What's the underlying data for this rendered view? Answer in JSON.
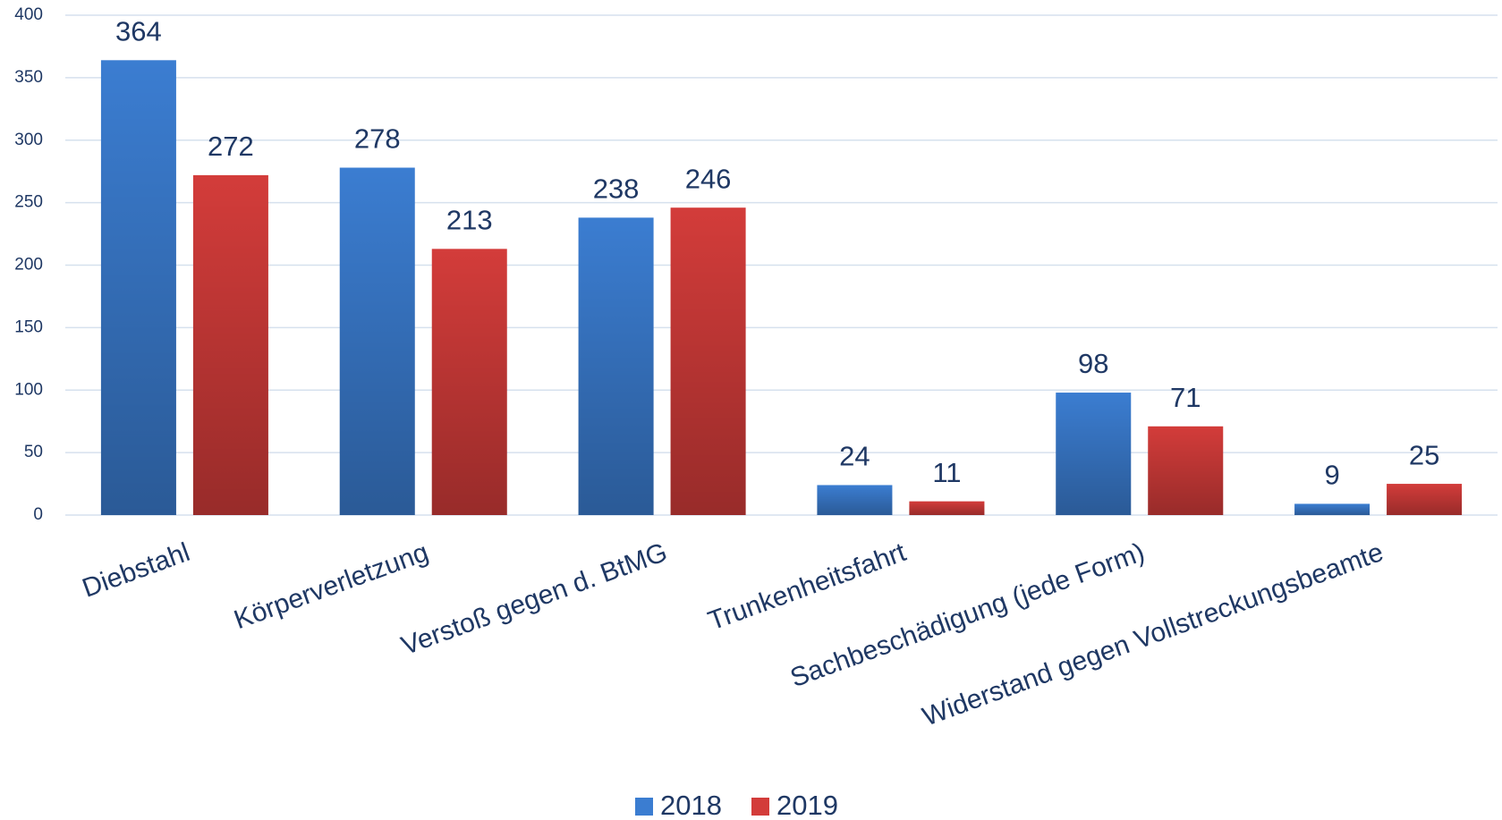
{
  "chart_data": {
    "type": "bar",
    "categories": [
      "Diebstahl",
      "Körperverletzung",
      "Verstoß gegen d. BtMG",
      "Trunkenheitsfahrt",
      "Sachbeschädigung (jede Form)",
      "Widerstand gegen Vollstreckungsbeamte"
    ],
    "series": [
      {
        "name": "2018",
        "color": "#3b7dd1",
        "values": [
          364,
          278,
          238,
          24,
          98,
          9
        ]
      },
      {
        "name": "2019",
        "color": "#d33c3a",
        "values": [
          272,
          213,
          246,
          11,
          71,
          25
        ]
      }
    ],
    "ylim": [
      0,
      400
    ],
    "yticks": [
      0,
      50,
      100,
      150,
      200,
      250,
      300,
      350,
      400
    ],
    "grid": true,
    "legend": "bottom"
  }
}
